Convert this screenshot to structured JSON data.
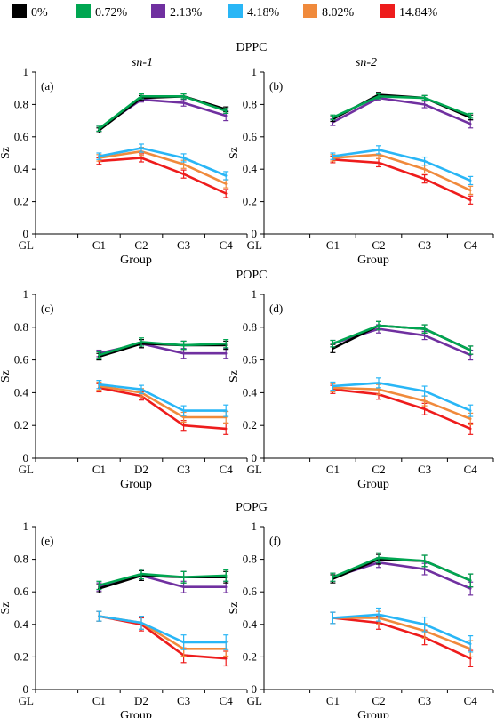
{
  "legend": [
    {
      "label": "0%",
      "color": "#000000"
    },
    {
      "label": "0.72%",
      "color": "#00a651"
    },
    {
      "label": "2.13%",
      "color": "#7030a0"
    },
    {
      "label": "4.18%",
      "color": "#29b6f6"
    },
    {
      "label": "8.02%",
      "color": "#f08a3c"
    },
    {
      "label": "14.84%",
      "color": "#ee1c1c"
    }
  ],
  "group_titles": [
    "DPPC",
    "POPC",
    "POPG"
  ],
  "column_titles": [
    "sn-1",
    "sn-2"
  ],
  "chart_data": [
    {
      "type": "line",
      "panel": "(a)",
      "group": "DPPC",
      "column": "sn-1",
      "ylabel": "Sz",
      "xlabel": "Group",
      "x_ticks": [
        "GL",
        "C1",
        "C2",
        "C3",
        "C4"
      ],
      "y_ticks": [
        "0",
        "0.2",
        "0.4",
        "0.6",
        "0.8",
        "1"
      ],
      "ylim": [
        0,
        1
      ],
      "categories": [
        "C1",
        "C2",
        "C3",
        "C4"
      ],
      "series": [
        {
          "name": "0%",
          "values": [
            0.64,
            0.84,
            0.85,
            0.77
          ],
          "errors": [
            0.015,
            0.015,
            0.015,
            0.015
          ]
        },
        {
          "name": "0.72%",
          "values": [
            0.65,
            0.85,
            0.85,
            0.76
          ],
          "errors": [
            0.015,
            0.015,
            0.015,
            0.015
          ]
        },
        {
          "name": "2.13%",
          "values": [
            0.65,
            0.83,
            0.81,
            0.73
          ],
          "errors": [
            0.015,
            0.015,
            0.02,
            0.03
          ]
        },
        {
          "name": "4.18%",
          "values": [
            0.48,
            0.53,
            0.47,
            0.36
          ],
          "errors": [
            0.02,
            0.025,
            0.025,
            0.025
          ]
        },
        {
          "name": "8.02%",
          "values": [
            0.47,
            0.51,
            0.43,
            0.31
          ],
          "errors": [
            0.02,
            0.025,
            0.025,
            0.025
          ]
        },
        {
          "name": "14.84%",
          "values": [
            0.45,
            0.47,
            0.37,
            0.25
          ],
          "errors": [
            0.02,
            0.025,
            0.025,
            0.025
          ]
        }
      ]
    },
    {
      "type": "line",
      "panel": "(b)",
      "group": "DPPC",
      "column": "sn-2",
      "ylabel": "Sz",
      "xlabel": "Group",
      "x_ticks": [
        "GL",
        "C1",
        "C2",
        "C3",
        "C4"
      ],
      "y_ticks": [
        "0",
        "0.2",
        "0.4",
        "0.6",
        "0.8",
        "1"
      ],
      "ylim": [
        0,
        1
      ],
      "categories": [
        "C1",
        "C2",
        "C3",
        "C4"
      ],
      "series": [
        {
          "name": "0%",
          "values": [
            0.71,
            0.86,
            0.84,
            0.72
          ],
          "errors": [
            0.015,
            0.015,
            0.015,
            0.015
          ]
        },
        {
          "name": "0.72%",
          "values": [
            0.72,
            0.85,
            0.84,
            0.73
          ],
          "errors": [
            0.015,
            0.015,
            0.015,
            0.015
          ]
        },
        {
          "name": "2.13%",
          "values": [
            0.69,
            0.84,
            0.8,
            0.68
          ],
          "errors": [
            0.02,
            0.015,
            0.02,
            0.025
          ]
        },
        {
          "name": "4.18%",
          "values": [
            0.48,
            0.52,
            0.45,
            0.33
          ],
          "errors": [
            0.02,
            0.025,
            0.025,
            0.025
          ]
        },
        {
          "name": "8.02%",
          "values": [
            0.47,
            0.49,
            0.4,
            0.27
          ],
          "errors": [
            0.02,
            0.025,
            0.025,
            0.025
          ]
        },
        {
          "name": "14.84%",
          "values": [
            0.46,
            0.44,
            0.34,
            0.21
          ],
          "errors": [
            0.02,
            0.025,
            0.025,
            0.025
          ]
        }
      ]
    },
    {
      "type": "line",
      "panel": "(c)",
      "group": "POPC",
      "column": "sn-1",
      "ylabel": "Sz",
      "xlabel": "Group",
      "x_ticks": [
        "GL",
        "C1",
        "D2",
        "C3",
        "C4"
      ],
      "y_ticks": [
        "0",
        "0.2",
        "0.4",
        "0.6",
        "0.8",
        "1"
      ],
      "ylim": [
        0,
        1
      ],
      "categories": [
        "C1",
        "D2",
        "C3",
        "C4"
      ],
      "series": [
        {
          "name": "0%",
          "values": [
            0.62,
            0.7,
            0.69,
            0.69
          ],
          "errors": [
            0.02,
            0.025,
            0.025,
            0.025
          ]
        },
        {
          "name": "0.72%",
          "values": [
            0.63,
            0.71,
            0.69,
            0.7
          ],
          "errors": [
            0.02,
            0.025,
            0.025,
            0.025
          ]
        },
        {
          "name": "2.13%",
          "values": [
            0.64,
            0.7,
            0.64,
            0.64
          ],
          "errors": [
            0.02,
            0.025,
            0.03,
            0.03
          ]
        },
        {
          "name": "4.18%",
          "values": [
            0.45,
            0.42,
            0.29,
            0.29
          ],
          "errors": [
            0.025,
            0.025,
            0.03,
            0.035
          ]
        },
        {
          "name": "8.02%",
          "values": [
            0.44,
            0.4,
            0.25,
            0.25
          ],
          "errors": [
            0.025,
            0.025,
            0.03,
            0.035
          ]
        },
        {
          "name": "14.84%",
          "values": [
            0.43,
            0.38,
            0.2,
            0.18
          ],
          "errors": [
            0.025,
            0.025,
            0.03,
            0.035
          ]
        }
      ]
    },
    {
      "type": "line",
      "panel": "(d)",
      "group": "POPC",
      "column": "sn-2",
      "ylabel": "Sz",
      "xlabel": "Group",
      "x_ticks": [
        "GL",
        "C1",
        "C2",
        "C3",
        "C4"
      ],
      "y_ticks": [
        "0",
        "0.2",
        "0.4",
        "0.6",
        "0.8",
        "1"
      ],
      "ylim": [
        0,
        1
      ],
      "categories": [
        "C1",
        "C2",
        "C3",
        "C4"
      ],
      "series": [
        {
          "name": "0%",
          "values": [
            0.67,
            0.81,
            0.79,
            0.66
          ],
          "errors": [
            0.025,
            0.025,
            0.025,
            0.025
          ]
        },
        {
          "name": "0.72%",
          "values": [
            0.7,
            0.81,
            0.79,
            0.66
          ],
          "errors": [
            0.02,
            0.025,
            0.025,
            0.025
          ]
        },
        {
          "name": "2.13%",
          "values": [
            0.7,
            0.79,
            0.75,
            0.63
          ],
          "errors": [
            0.02,
            0.025,
            0.025,
            0.03
          ]
        },
        {
          "name": "4.18%",
          "values": [
            0.44,
            0.46,
            0.41,
            0.29
          ],
          "errors": [
            0.025,
            0.03,
            0.03,
            0.035
          ]
        },
        {
          "name": "8.02%",
          "values": [
            0.43,
            0.42,
            0.35,
            0.24
          ],
          "errors": [
            0.025,
            0.03,
            0.03,
            0.035
          ]
        },
        {
          "name": "14.84%",
          "values": [
            0.42,
            0.39,
            0.3,
            0.18
          ],
          "errors": [
            0.025,
            0.03,
            0.035,
            0.035
          ]
        }
      ]
    },
    {
      "type": "line",
      "panel": "(e)",
      "group": "POPG",
      "column": "sn-1",
      "ylabel": "Sz",
      "xlabel": "Group",
      "x_ticks": [
        "GL",
        "C1",
        "D2",
        "C3",
        "C4"
      ],
      "y_ticks": [
        "0",
        "0.2",
        "0.4",
        "0.6",
        "0.8",
        "1"
      ],
      "ylim": [
        0,
        1
      ],
      "categories": [
        "C1",
        "D2",
        "C3",
        "C4"
      ],
      "series": [
        {
          "name": "0%",
          "values": [
            0.62,
            0.7,
            0.69,
            0.69
          ],
          "errors": [
            0.025,
            0.03,
            0.035,
            0.035
          ]
        },
        {
          "name": "0.72%",
          "values": [
            0.64,
            0.71,
            0.69,
            0.7
          ],
          "errors": [
            0.025,
            0.03,
            0.035,
            0.035
          ]
        },
        {
          "name": "2.13%",
          "values": [
            0.63,
            0.7,
            0.63,
            0.63
          ],
          "errors": [
            0.025,
            0.03,
            0.035,
            0.035
          ]
        },
        {
          "name": "4.18%",
          "values": [
            0.45,
            0.41,
            0.29,
            0.29
          ],
          "errors": [
            0.03,
            0.04,
            0.045,
            0.045
          ]
        },
        {
          "name": "8.02%",
          "values": [
            0.45,
            0.41,
            0.25,
            0.25
          ],
          "errors": [
            0.03,
            0.04,
            0.045,
            0.045
          ]
        },
        {
          "name": "14.84%",
          "values": [
            0.45,
            0.4,
            0.21,
            0.19
          ],
          "errors": [
            0.03,
            0.04,
            0.045,
            0.045
          ]
        }
      ]
    },
    {
      "type": "line",
      "panel": "(f)",
      "group": "POPG",
      "column": "sn-2",
      "ylabel": "Sz",
      "xlabel": "Group",
      "x_ticks": [
        "GL",
        "C1",
        "C2",
        "C3",
        "C4"
      ],
      "y_ticks": [
        "0",
        "0.2",
        "0.4",
        "0.6",
        "0.8",
        "1"
      ],
      "ylim": [
        0,
        1
      ],
      "categories": [
        "C1",
        "C2",
        "C3",
        "C4"
      ],
      "series": [
        {
          "name": "0%",
          "values": [
            0.68,
            0.8,
            0.79,
            0.67
          ],
          "errors": [
            0.025,
            0.03,
            0.035,
            0.04
          ]
        },
        {
          "name": "0.72%",
          "values": [
            0.69,
            0.81,
            0.79,
            0.67
          ],
          "errors": [
            0.025,
            0.03,
            0.035,
            0.04
          ]
        },
        {
          "name": "2.13%",
          "values": [
            0.69,
            0.78,
            0.74,
            0.62
          ],
          "errors": [
            0.025,
            0.03,
            0.035,
            0.04
          ]
        },
        {
          "name": "4.18%",
          "values": [
            0.44,
            0.46,
            0.4,
            0.28
          ],
          "errors": [
            0.035,
            0.04,
            0.045,
            0.05
          ]
        },
        {
          "name": "8.02%",
          "values": [
            0.44,
            0.44,
            0.36,
            0.25
          ],
          "errors": [
            0.035,
            0.04,
            0.045,
            0.05
          ]
        },
        {
          "name": "14.84%",
          "values": [
            0.44,
            0.41,
            0.32,
            0.19
          ],
          "errors": [
            0.035,
            0.04,
            0.045,
            0.05
          ]
        }
      ]
    }
  ]
}
